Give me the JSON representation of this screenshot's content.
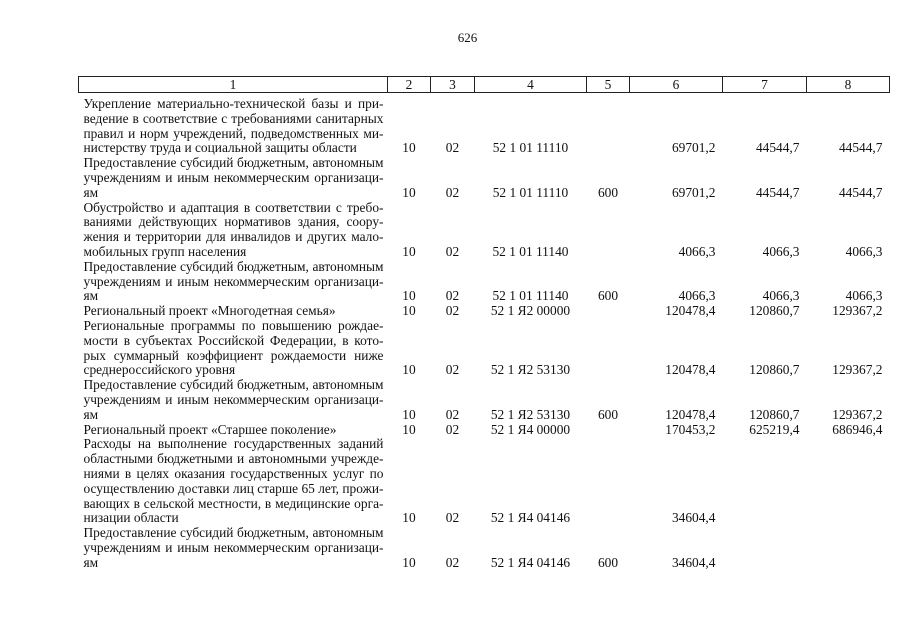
{
  "page_number": "626",
  "headers": [
    "1",
    "2",
    "3",
    "4",
    "5",
    "6",
    "7",
    "8"
  ],
  "rows": [
    {
      "lines": [
        "Укрепление материально-технической базы и при-",
        "ведение в соответствие с требованиями санитарных",
        "правил и норм учреждений, подведомственных ми-",
        "нистерству труда и социальной защиты области"
      ],
      "c2": "10",
      "c3": "02",
      "c4": "52 1 01 11110",
      "c5": "",
      "c6": "69701,2",
      "c7": "44544,7",
      "c8": "44544,7"
    },
    {
      "lines": [
        "Предоставление субсидий бюджетным, автономным",
        "учреждениям и иным некоммерческим организаци-",
        "ям"
      ],
      "c2": "10",
      "c3": "02",
      "c4": "52 1 01 11110",
      "c5": "600",
      "c6": "69701,2",
      "c7": "44544,7",
      "c8": "44544,7"
    },
    {
      "lines": [
        "Обустройство и адаптация в соответствии с требо-",
        "ваниями действующих нормативов здания, соору-",
        "жения и территории для инвалидов и других мало-",
        "мобильных групп населения"
      ],
      "c2": "10",
      "c3": "02",
      "c4": "52 1 01 11140",
      "c5": "",
      "c6": "4066,3",
      "c7": "4066,3",
      "c8": "4066,3"
    },
    {
      "lines": [
        "Предоставление субсидий бюджетным, автономным",
        "учреждениям и иным некоммерческим организаци-",
        "ям"
      ],
      "c2": "10",
      "c3": "02",
      "c4": "52 1 01 11140",
      "c5": "600",
      "c6": "4066,3",
      "c7": "4066,3",
      "c8": "4066,3"
    },
    {
      "lines": [
        "Региональный проект «Многодетная семья»"
      ],
      "c2": "10",
      "c3": "02",
      "c4": "52 1 Я2 00000",
      "c5": "",
      "c6": "120478,4",
      "c7": "120860,7",
      "c8": "129367,2"
    },
    {
      "lines": [
        "Региональные программы по повышению рождае-",
        "мости в субъектах Российской Федерации, в кото-",
        "рых суммарный коэффициент рождаемости ниже",
        "среднероссийского уровня"
      ],
      "c2": "10",
      "c3": "02",
      "c4": "52 1 Я2 53130",
      "c5": "",
      "c6": "120478,4",
      "c7": "120860,7",
      "c8": "129367,2"
    },
    {
      "lines": [
        "Предоставление субсидий бюджетным, автономным",
        "учреждениям и иным некоммерческим организаци-",
        "ям"
      ],
      "c2": "10",
      "c3": "02",
      "c4": "52 1 Я2 53130",
      "c5": "600",
      "c6": "120478,4",
      "c7": "120860,7",
      "c8": "129367,2"
    },
    {
      "lines": [
        "Региональный проект «Старшее поколение»"
      ],
      "c2": "10",
      "c3": "02",
      "c4": "52 1 Я4 00000",
      "c5": "",
      "c6": "170453,2",
      "c7": "625219,4",
      "c8": "686946,4"
    },
    {
      "lines": [
        "Расходы на выполнение государственных заданий",
        "областными бюджетными и автономными учрежде-",
        "ниями в целях оказания государственных услуг по",
        "осуществлению доставки лиц старше 65 лет, прожи-",
        "вающих в сельской местности, в медицинские орга-",
        "низации области"
      ],
      "c2": "10",
      "c3": "02",
      "c4": "52 1 Я4 04146",
      "c5": "",
      "c6": "34604,4",
      "c7": "",
      "c8": ""
    },
    {
      "lines": [
        "Предоставление субсидий бюджетным, автономным",
        "учреждениям и иным некоммерческим организаци-",
        "ям"
      ],
      "c2": "10",
      "c3": "02",
      "c4": "52 1 Я4 04146",
      "c5": "600",
      "c6": "34604,4",
      "c7": "",
      "c8": ""
    }
  ]
}
